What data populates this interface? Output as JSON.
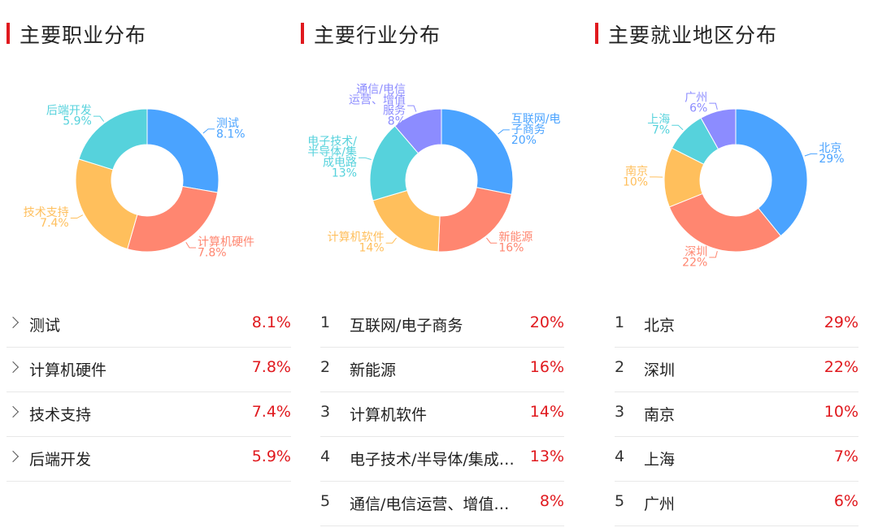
{
  "panels": [
    {
      "title": "主要职业分布",
      "list_style": "chevron",
      "items": [
        {
          "name": "测试",
          "pct": "8.1%"
        },
        {
          "name": "计算机硬件",
          "pct": "7.8%"
        },
        {
          "name": "技术支持",
          "pct": "7.4%"
        },
        {
          "name": "后端开发",
          "pct": "5.9%"
        }
      ]
    },
    {
      "title": "主要行业分布",
      "list_style": "number",
      "items": [
        {
          "idx": "1",
          "name": "互联网/电子商务",
          "pct": "20%"
        },
        {
          "idx": "2",
          "name": "新能源",
          "pct": "16%"
        },
        {
          "idx": "3",
          "name": "计算机软件",
          "pct": "14%"
        },
        {
          "idx": "4",
          "name": "电子技术/半导体/集成…",
          "pct": "13%"
        },
        {
          "idx": "5",
          "name": "通信/电信运营、增值…",
          "pct": "8%"
        }
      ]
    },
    {
      "title": "主要就业地区分布",
      "list_style": "number",
      "items": [
        {
          "idx": "1",
          "name": "北京",
          "pct": "29%"
        },
        {
          "idx": "2",
          "name": "深圳",
          "pct": "22%"
        },
        {
          "idx": "3",
          "name": "南京",
          "pct": "10%"
        },
        {
          "idx": "4",
          "name": "上海",
          "pct": "7%"
        },
        {
          "idx": "5",
          "name": "广州",
          "pct": "6%"
        }
      ]
    }
  ],
  "chart_data": [
    {
      "type": "pie",
      "title": "主要职业分布",
      "slices": [
        {
          "label": [
            "测试"
          ],
          "value_label": "8.1%",
          "value": 8.1,
          "color": "#4aa3ff"
        },
        {
          "label": [
            "计算机硬件"
          ],
          "value_label": "7.8%",
          "value": 7.8,
          "color": "#ff8670"
        },
        {
          "label": [
            "技术支持"
          ],
          "value_label": "7.4%",
          "value": 7.4,
          "color": "#ffbf5c"
        },
        {
          "label": [
            "后端开发"
          ],
          "value_label": "5.9%",
          "value": 5.9,
          "color": "#56d2dc"
        }
      ]
    },
    {
      "type": "pie",
      "title": "主要行业分布",
      "slices": [
        {
          "label": [
            "互联网/电",
            "子商务"
          ],
          "value_label": "20%",
          "value": 20,
          "color": "#4aa3ff"
        },
        {
          "label": [
            "新能源"
          ],
          "value_label": "16%",
          "value": 16,
          "color": "#ff8670"
        },
        {
          "label": [
            "计算机软件"
          ],
          "value_label": "14%",
          "value": 14,
          "color": "#ffbf5c"
        },
        {
          "label": [
            "电子技术/",
            "半导体/集",
            "成电路"
          ],
          "value_label": "13%",
          "value": 13,
          "color": "#56d2dc"
        },
        {
          "label": [
            "通信/电信",
            "运营、增值",
            "服务"
          ],
          "value_label": "8%",
          "value": 8,
          "color": "#8c8cff"
        }
      ]
    },
    {
      "type": "pie",
      "title": "主要就业地区分布",
      "slices": [
        {
          "label": [
            "北京"
          ],
          "value_label": "29%",
          "value": 29,
          "color": "#4aa3ff"
        },
        {
          "label": [
            "深圳"
          ],
          "value_label": "22%",
          "value": 22,
          "color": "#ff8670"
        },
        {
          "label": [
            "南京"
          ],
          "value_label": "10%",
          "value": 10,
          "color": "#ffbf5c"
        },
        {
          "label": [
            "上海"
          ],
          "value_label": "7%",
          "value": 7,
          "color": "#56d2dc"
        },
        {
          "label": [
            "广州"
          ],
          "value_label": "6%",
          "value": 6,
          "color": "#8c8cff"
        }
      ]
    }
  ]
}
